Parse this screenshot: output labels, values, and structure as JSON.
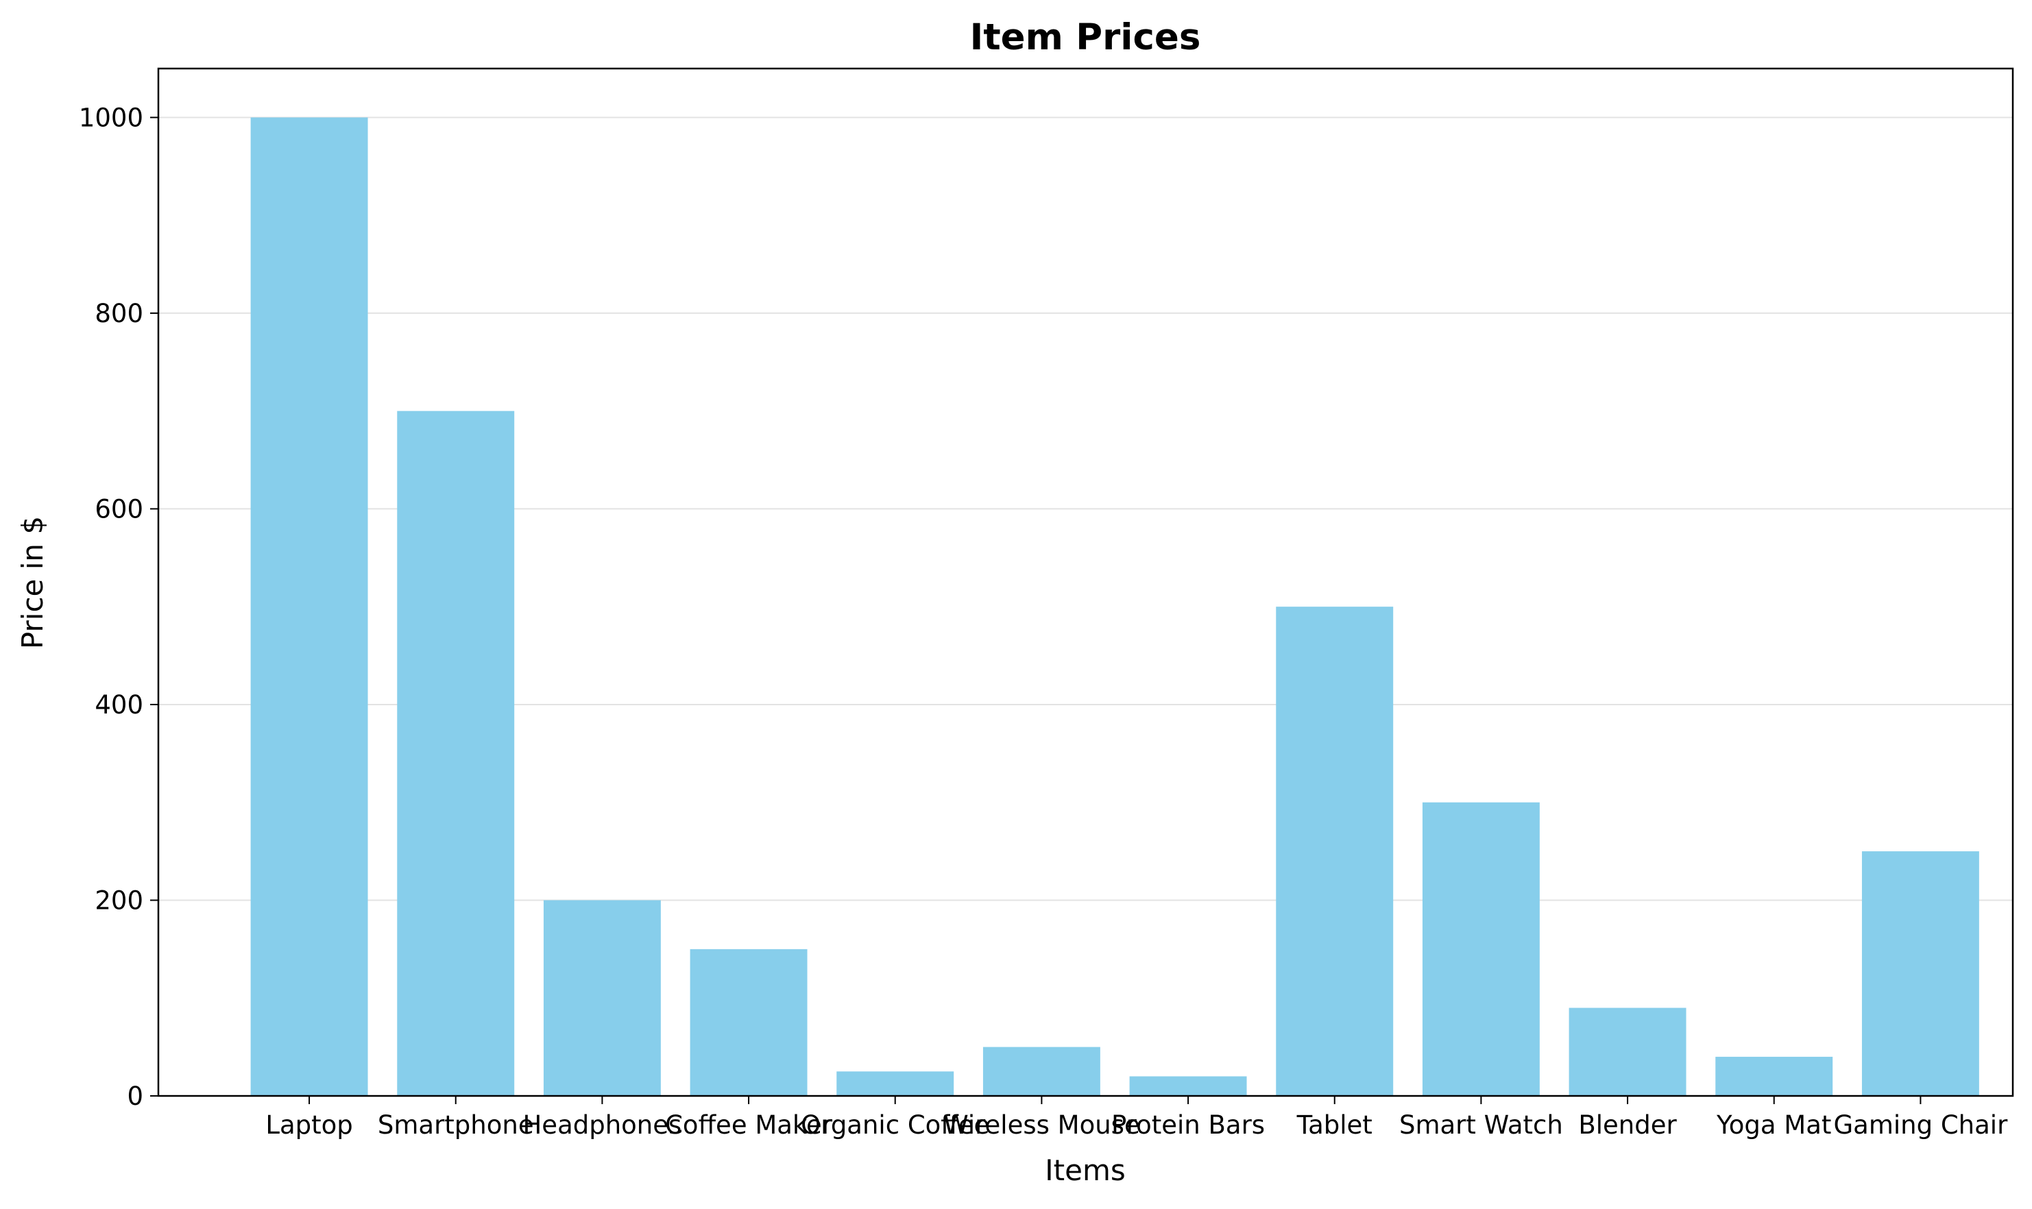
{
  "chart_data": {
    "type": "bar",
    "title": "Item Prices",
    "xlabel": "Items",
    "ylabel": "Price in $",
    "categories": [
      "Laptop",
      "Smartphone",
      "Headphones",
      "Coffee Maker",
      "Organic Coffee",
      "Wireless Mouse",
      "Protein Bars",
      "Tablet",
      "Smart Watch",
      "Blender",
      "Yoga Mat",
      "Gaming Chair"
    ],
    "values": [
      1000,
      700,
      200,
      150,
      25,
      50,
      20,
      500,
      300,
      90,
      40,
      250
    ],
    "ylim": [
      0,
      1050
    ],
    "yticks": [
      0,
      200,
      400,
      600,
      800,
      1000
    ],
    "grid": "y-axis",
    "legend": "none",
    "bar_color": "#87CEEB"
  }
}
